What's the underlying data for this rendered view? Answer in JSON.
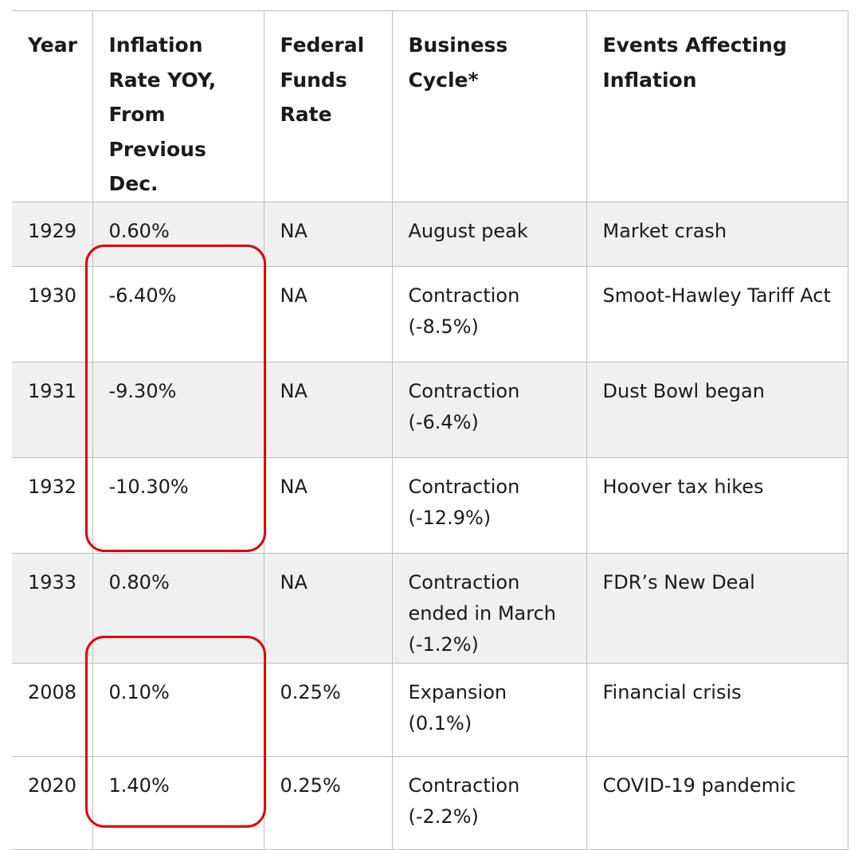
{
  "table": {
    "headers": [
      "Year",
      "Inflation Rate YOY, From Previous Dec.",
      "Federal Funds Rate",
      "Business Cycle*",
      "Events Affecting Inflation"
    ],
    "rows": [
      [
        "1929",
        "0.60%",
        "NA",
        "August peak",
        "Market crash"
      ],
      [
        "1930",
        "-6.40%",
        "NA",
        "Contraction (-8.5%)",
        "Smoot-Hawley Tariff Act"
      ],
      [
        "1931",
        "-9.30%",
        "NA",
        "Contraction (-6.4%)",
        "Dust Bowl began"
      ],
      [
        "1932",
        "-10.30%",
        "NA",
        "Contraction (-12.9%)",
        "Hoover tax hikes"
      ],
      [
        "1933",
        "0.80%",
        "NA",
        "Contraction ended in March (-1.2%)",
        "FDR’s New Deal"
      ],
      [
        "2008",
        "0.10%",
        "0.25%",
        "Expansion (0.1%)",
        "Financial crisis"
      ],
      [
        "2020",
        "1.40%",
        "0.25%",
        "Contraction (-2.2%)",
        "COVID-19 pandemic"
      ]
    ]
  },
  "colors": {
    "highlight": "#e00000",
    "shaded_row": "#f0f0f0",
    "border": "#bdbdbd"
  }
}
